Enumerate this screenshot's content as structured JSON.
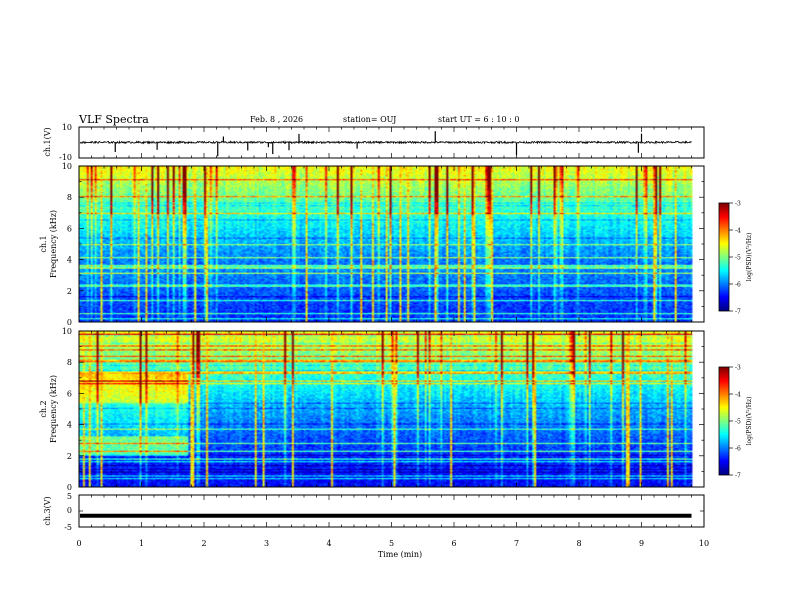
{
  "header": {
    "title": "VLF Spectra",
    "date": "Feb. 8 , 2026",
    "station": "station= OUJ",
    "start": "start  UT =   6 : 10 : 0"
  },
  "chart_data": [
    {
      "type": "line",
      "name": "ch1-waveform",
      "ylabel": "ch.1(V)",
      "ylim": [
        -10,
        10
      ],
      "ytick_labels": [
        "10",
        "-10"
      ],
      "baseline": 0.1,
      "noise_amplitude": 0.6,
      "spike_times_min": [
        0.58,
        1.25,
        2.22,
        2.31,
        2.7,
        3.03,
        3.1,
        3.36,
        3.52,
        4.45,
        5.7,
        7.0,
        8.95,
        9.0
      ]
    },
    {
      "type": "heatmap",
      "name": "ch1-spectrogram",
      "ylabel": "ch.1\nFrequency (kHz)",
      "xlim": [
        0,
        10
      ],
      "ylim": [
        0,
        10
      ],
      "ytick_labels": [
        "0",
        "2",
        "4",
        "6",
        "8",
        "10"
      ],
      "data_end_min": 9.8,
      "colorbar": {
        "label": "log(PSD)(V²/Hz)",
        "range": [
          -7,
          -3
        ],
        "tick_labels": [
          "-3",
          "-4",
          "-5",
          "-6",
          "-7"
        ]
      }
    },
    {
      "type": "heatmap",
      "name": "ch2-spectrogram",
      "ylabel": "ch.2\nFrequency (kHz)",
      "xlim": [
        0,
        10
      ],
      "ylim": [
        0,
        10
      ],
      "ytick_labels": [
        "0",
        "2",
        "4",
        "6",
        "8",
        "10"
      ],
      "data_end_min": 9.8,
      "bright_band_until_min": 1.75,
      "colorbar": {
        "label": "log(PSD)(V²/Hz)",
        "range": [
          -7,
          -3
        ],
        "tick_labels": [
          "-3",
          "-4",
          "-5",
          "-6",
          "-7"
        ]
      }
    },
    {
      "type": "line",
      "name": "ch3-waveform",
      "ylabel": "ch.3(V)",
      "ylim": [
        -5,
        5
      ],
      "ytick_labels": [
        "5",
        "0",
        "-5"
      ],
      "baseline": -1.5,
      "xlabel": "Time  (min)",
      "xtick_labels": [
        "0",
        "1",
        "2",
        "3",
        "4",
        "5",
        "6",
        "7",
        "8",
        "9",
        "10"
      ]
    }
  ],
  "colors": {
    "axes": "#000000",
    "background": "#ffffff"
  }
}
